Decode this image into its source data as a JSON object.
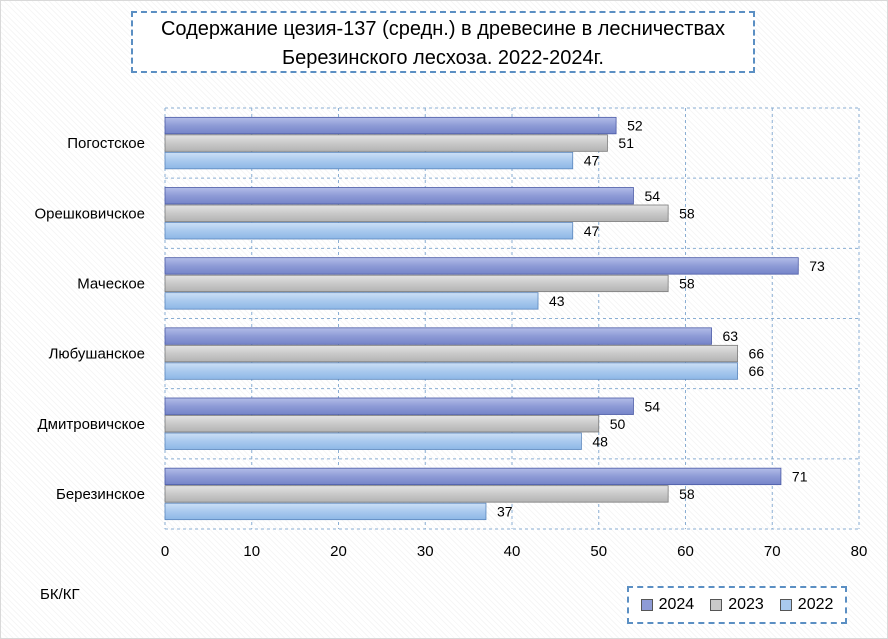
{
  "chart_data": {
    "type": "bar",
    "orientation": "horizontal",
    "title_lines": [
      "Содержание цезия-137 (средн.) в древесине в лесничествах",
      "Березинского лесхоза. 2022-2024г."
    ],
    "categories": [
      "Погостское",
      "Орешковичское",
      "Маческое",
      "Любушанское",
      "Дмитровичское",
      "Березинское"
    ],
    "series": [
      {
        "name": "2024",
        "color": "#8e9bd6",
        "values": [
          52,
          54,
          73,
          63,
          54,
          71
        ]
      },
      {
        "name": "2023",
        "color": "#c9c9c9",
        "values": [
          51,
          58,
          58,
          66,
          50,
          58
        ]
      },
      {
        "name": "2022",
        "color": "#a9c9ee",
        "values": [
          47,
          47,
          43,
          66,
          48,
          37
        ]
      }
    ],
    "xlim": [
      0,
      80
    ],
    "xticks": [
      0,
      10,
      20,
      30,
      40,
      50,
      60,
      70,
      80
    ],
    "xlabel": "",
    "unit_label": "БК/КГ",
    "grid": true,
    "legend_position": "bottom-right"
  }
}
